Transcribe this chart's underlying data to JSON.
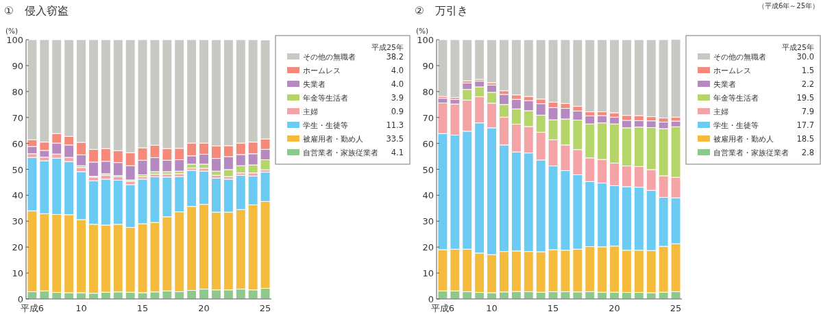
{
  "chart_data": [
    {
      "type": "bar",
      "stacked": true,
      "title": "①　侵入窃盗",
      "ylabel": "(%)",
      "legend": "right",
      "legend_title": "平成25年",
      "ylim": [
        0,
        100
      ],
      "yticks": [
        0,
        10,
        20,
        30,
        40,
        50,
        60,
        70,
        80,
        90,
        100
      ],
      "grid": false,
      "annotations": [
        "38.2",
        "4.0",
        "4.0",
        "3.9",
        "0.9",
        "11.3",
        "33.5",
        "4.1"
      ],
      "categories": [
        "平成6",
        null,
        null,
        null,
        "10",
        null,
        null,
        null,
        null,
        "15",
        null,
        null,
        null,
        null,
        "20",
        null,
        null,
        null,
        null,
        "25"
      ],
      "series": [
        {
          "name": "自営業者・家族従業者",
          "color": "#8cc98a",
          "values": [
            2.8,
            3.1,
            2.5,
            2.4,
            2.4,
            2.2,
            2.6,
            2.7,
            2.6,
            2.4,
            2.7,
            3.1,
            2.8,
            3.3,
            3.8,
            3.5,
            3.5,
            3.8,
            3.5,
            4.1
          ]
        },
        {
          "name": "被雇用者・勤め人",
          "color": "#f5bb3c",
          "values": [
            31.2,
            29.8,
            30.1,
            30.1,
            28.2,
            26.6,
            25.9,
            26.1,
            25.0,
            26.6,
            26.8,
            28.6,
            30.8,
            32.4,
            32.7,
            30.0,
            30.0,
            30.7,
            32.8,
            33.5
          ]
        },
        {
          "name": "学生・生徒等",
          "color": "#6ccbf2",
          "values": [
            20.6,
            20.4,
            21.7,
            20.5,
            18.5,
            16.8,
            17.7,
            17.0,
            16.5,
            17.2,
            17.6,
            15.3,
            13.6,
            13.9,
            12.8,
            13.1,
            12.7,
            13.2,
            11.1,
            11.3
          ]
        },
        {
          "name": "主婦",
          "color": "#f4a3a6",
          "values": [
            1.4,
            1.4,
            1.6,
            1.6,
            1.6,
            1.4,
            1.5,
            1.3,
            1.3,
            1.0,
            1.0,
            1.1,
            1.1,
            0.9,
            1.1,
            1.1,
            1.0,
            0.9,
            1.2,
            0.9
          ]
        },
        {
          "name": "年金等生活者",
          "color": "#b5d46a",
          "values": [
            0,
            0,
            0,
            0,
            0.7,
            0.3,
            0.6,
            0.5,
            0.5,
            0.7,
            1.0,
            1.0,
            1.0,
            1.5,
            1.6,
            1.6,
            2.7,
            2.8,
            3.1,
            3.9
          ]
        },
        {
          "name": "失業者",
          "color": "#b68ac0",
          "values": [
            2.8,
            2.6,
            4.2,
            4.8,
            4.2,
            5.5,
            4.8,
            5.0,
            5.5,
            5.6,
            5.4,
            4.4,
            4.4,
            3.2,
            3.8,
            4.9,
            5.0,
            4.3,
            4.3,
            4.0
          ]
        },
        {
          "name": "ホームレス",
          "color": "#f58a7a",
          "values": [
            2.6,
            3.2,
            3.7,
            3.3,
            4.8,
            4.9,
            4.9,
            4.6,
            5.0,
            4.8,
            4.8,
            4.5,
            4.4,
            4.9,
            4.3,
            4.8,
            4.2,
            4.4,
            4.5,
            4.0
          ]
        },
        {
          "name": "その他の無職者",
          "color": "#c8c9c3",
          "values": [
            38.6,
            39.5,
            36.2,
            37.3,
            39.6,
            42.3,
            42.0,
            42.8,
            43.6,
            41.7,
            40.7,
            42.0,
            41.9,
            39.9,
            39.9,
            41.0,
            40.9,
            39.9,
            39.5,
            38.2
          ]
        }
      ]
    },
    {
      "type": "bar",
      "stacked": true,
      "title": "②　万引き",
      "ylabel": "(%)",
      "legend": "right",
      "legend_title": "平成25年",
      "ylim": [
        0,
        100
      ],
      "yticks": [
        0,
        10,
        20,
        30,
        40,
        50,
        60,
        70,
        80,
        90,
        100
      ],
      "grid": false,
      "annotations": [
        "30.0",
        "1.5",
        "2.2",
        "19.5",
        "7.9",
        "17.7",
        "18.5",
        "2.8",
        "（平成6年～25年）"
      ],
      "categories": [
        "平成6",
        null,
        null,
        null,
        "10",
        null,
        null,
        null,
        null,
        "15",
        null,
        null,
        null,
        null,
        "20",
        null,
        null,
        null,
        null,
        "25"
      ],
      "series": [
        {
          "name": "自営業者・家族従業者",
          "color": "#8cc98a",
          "values": [
            3.1,
            3.1,
            2.8,
            2.5,
            2.4,
            2.7,
            2.9,
            2.8,
            2.6,
            2.8,
            2.8,
            2.7,
            2.8,
            2.6,
            2.6,
            2.5,
            2.5,
            2.4,
            2.6,
            2.8
          ]
        },
        {
          "name": "被雇用者・勤め人",
          "color": "#f5bb3c",
          "values": [
            15.9,
            16.1,
            16.4,
            15.2,
            14.7,
            15.6,
            15.6,
            15.5,
            15.6,
            16.2,
            16.0,
            16.5,
            17.4,
            17.5,
            17.8,
            16.3,
            16.3,
            16.3,
            17.7,
            18.5
          ]
        },
        {
          "name": "学生・生徒等",
          "color": "#6ccbf2",
          "values": [
            44.8,
            44.0,
            45.5,
            50.2,
            48.9,
            41.1,
            38.2,
            38.0,
            35.4,
            32.3,
            30.7,
            28.7,
            25.1,
            24.6,
            23.3,
            24.5,
            24.3,
            23.2,
            18.9,
            17.7
          ]
        },
        {
          "name": "主婦",
          "color": "#f4a3a6",
          "values": [
            11.8,
            12.0,
            12.0,
            10.1,
            9.5,
            10.7,
            10.7,
            10.2,
            10.7,
            10.1,
            9.9,
            9.7,
            9.1,
            9.1,
            8.7,
            8.0,
            8.0,
            8.0,
            8.3,
            7.9
          ]
        },
        {
          "name": "年金等生活者",
          "color": "#b5d46a",
          "values": [
            0,
            0,
            4.1,
            3.8,
            4.2,
            4.9,
            5.9,
            6.1,
            6.6,
            7.7,
            10.0,
            11.4,
            13.1,
            14.1,
            15.1,
            14.7,
            15.2,
            16.2,
            18.2,
            19.5
          ]
        },
        {
          "name": "失業者",
          "color": "#b68ac0",
          "values": [
            1.8,
            1.8,
            2.5,
            2.2,
            2.8,
            3.9,
            3.7,
            3.9,
            4.4,
            4.7,
            4.1,
            3.5,
            3.1,
            2.8,
            2.6,
            2.9,
            2.5,
            2.6,
            2.5,
            2.2
          ]
        },
        {
          "name": "ホームレス",
          "color": "#f58a7a",
          "values": [
            0.7,
            0.7,
            0.8,
            0.7,
            0.9,
            1.4,
            1.7,
            1.6,
            1.8,
            2.1,
            1.9,
            1.8,
            1.6,
            1.5,
            1.7,
            1.9,
            1.9,
            1.6,
            1.6,
            1.5
          ]
        },
        {
          "name": "その他の無職者",
          "color": "#c8c9c3",
          "values": [
            21.9,
            22.3,
            15.9,
            15.3,
            16.6,
            19.7,
            21.3,
            21.9,
            22.9,
            24.1,
            24.6,
            25.7,
            27.8,
            27.8,
            28.2,
            29.2,
            29.3,
            29.7,
            30.2,
            30.0
          ]
        }
      ]
    }
  ]
}
